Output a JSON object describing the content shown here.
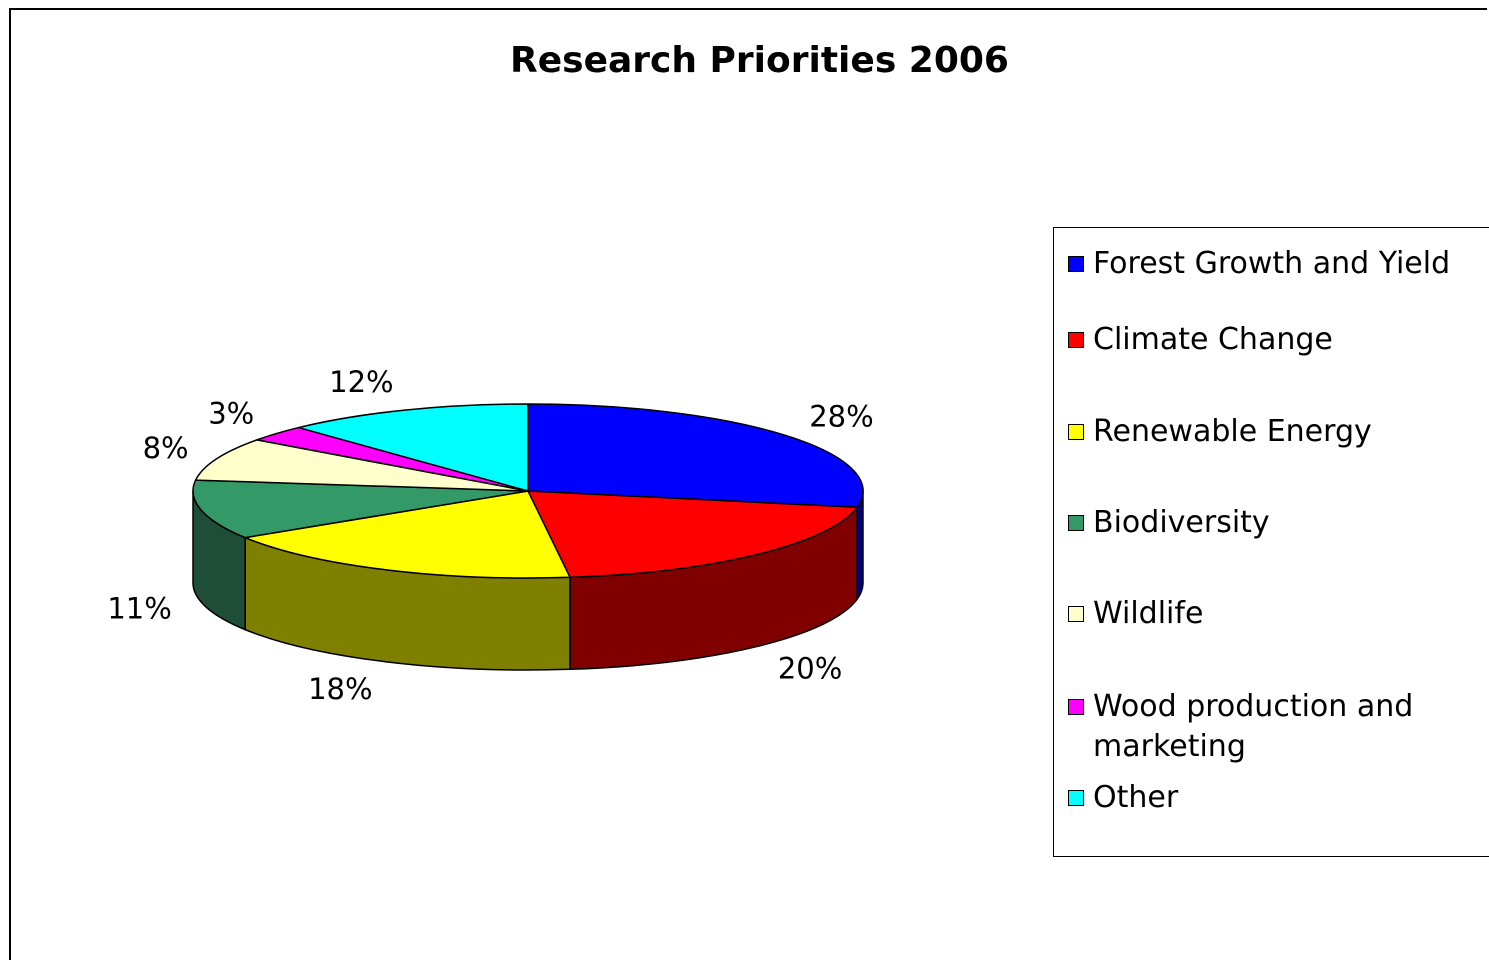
{
  "chart_data": {
    "type": "pie",
    "title": "Research Priorities 2006",
    "style": "3d",
    "legend_position": "right",
    "categories": [
      "Forest Growth and Yield",
      "Climate Change",
      "Renewable Energy",
      "Biodiversity",
      "Wildlife",
      "Wood production and marketing",
      "Other"
    ],
    "values": [
      28,
      20,
      18,
      11,
      8,
      3,
      12
    ],
    "labels": [
      "28%",
      "20%",
      "18%",
      "11%",
      "8%",
      "3%",
      "12%"
    ],
    "colors": [
      "#0000FF",
      "#FF0000",
      "#FFFF00",
      "#339966",
      "#FFFFCC",
      "#FF00FF",
      "#00FFFF"
    ],
    "side_colors": [
      "#000080",
      "#800000",
      "#808000",
      "#1E4E37",
      "#99997A",
      "#800080",
      "#008080"
    ]
  }
}
